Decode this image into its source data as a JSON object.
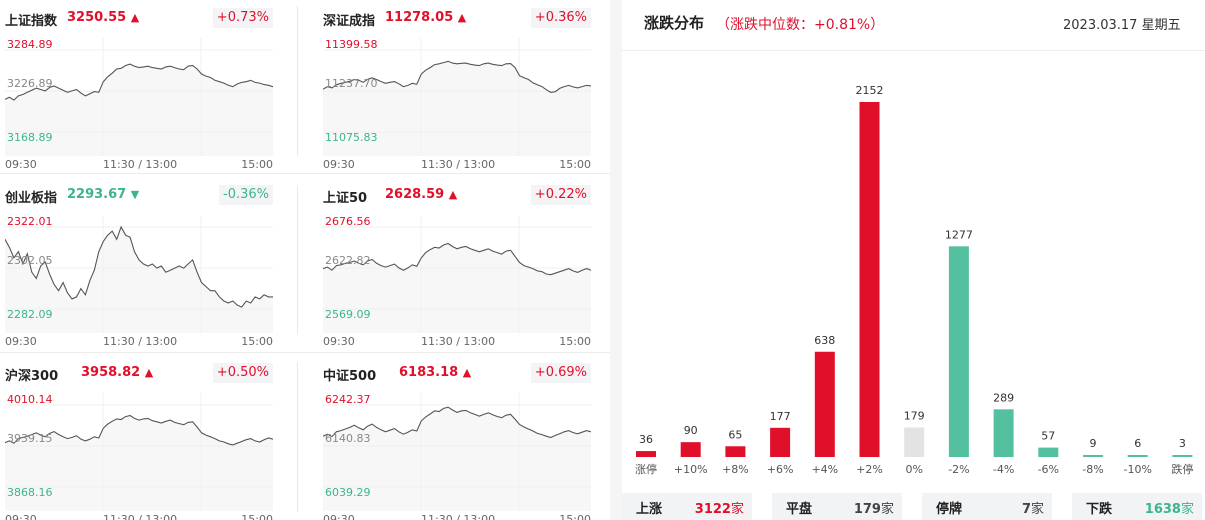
{
  "indices": [
    {
      "name": "上证指数",
      "value": "3250.55",
      "dir": "up",
      "change": "+0.73%",
      "y_top": "3284.89",
      "y_mid": "3226.89",
      "y_bot": "3168.89",
      "series": [
        3215,
        3218,
        3214,
        3220,
        3222,
        3225,
        3228,
        3231,
        3229,
        3227,
        3232,
        3234,
        3231,
        3228,
        3225,
        3227,
        3229,
        3224,
        3220,
        3223,
        3226,
        3225,
        3240,
        3247,
        3252,
        3258,
        3259,
        3263,
        3265,
        3262,
        3260,
        3261,
        3262,
        3260,
        3259,
        3258,
        3261,
        3262,
        3260,
        3258,
        3257,
        3262,
        3263,
        3258,
        3251,
        3248,
        3246,
        3242,
        3240,
        3238,
        3235,
        3233,
        3237,
        3239,
        3240,
        3242,
        3239,
        3238,
        3236,
        3235,
        3233
      ]
    },
    {
      "name": "深证成指",
      "value": "11278.05",
      "dir": "up",
      "change": "+0.36%",
      "y_top": "11399.58",
      "y_mid": "11237.70",
      "y_bot": "11075.83",
      "series": [
        11245,
        11255,
        11250,
        11262,
        11268,
        11272,
        11276,
        11283,
        11280,
        11272,
        11284,
        11290,
        11283,
        11275,
        11268,
        11272,
        11275,
        11266,
        11255,
        11260,
        11268,
        11264,
        11305,
        11320,
        11330,
        11342,
        11345,
        11350,
        11355,
        11348,
        11345,
        11347,
        11348,
        11343,
        11340,
        11338,
        11345,
        11348,
        11343,
        11340,
        11338,
        11345,
        11346,
        11330,
        11298,
        11290,
        11283,
        11270,
        11262,
        11255,
        11243,
        11232,
        11235,
        11248,
        11255,
        11260,
        11254,
        11250,
        11255,
        11260,
        11258
      ]
    },
    {
      "name": "创业板指",
      "value": "2293.67",
      "dir": "down",
      "change": "-0.36%",
      "y_top": "2322.01",
      "y_mid": "2302.05",
      "y_bot": "2282.09",
      "series": [
        2316,
        2312,
        2307,
        2310,
        2304,
        2309,
        2300,
        2297,
        2303,
        2305,
        2299,
        2294,
        2291,
        2295,
        2290,
        2287,
        2288,
        2292,
        2289,
        2296,
        2301,
        2310,
        2315,
        2318,
        2320,
        2316,
        2322,
        2318,
        2317,
        2310,
        2306,
        2304,
        2303,
        2304,
        2302,
        2303,
        2300,
        2301,
        2302,
        2303,
        2302,
        2304,
        2306,
        2300,
        2295,
        2293,
        2291,
        2291,
        2288,
        2286,
        2285,
        2286,
        2284,
        2283,
        2286,
        2285,
        2288,
        2287,
        2289,
        2288,
        2288
      ]
    },
    {
      "name": "上证50",
      "value": "2628.59",
      "dir": "up",
      "change": "+0.22%",
      "y_top": "2676.56",
      "y_mid": "2622.82",
      "y_bot": "2569.09",
      "series": [
        2622,
        2624,
        2620,
        2626,
        2627,
        2629,
        2630,
        2632,
        2629,
        2627,
        2632,
        2634,
        2629,
        2626,
        2624,
        2626,
        2628,
        2623,
        2620,
        2623,
        2627,
        2625,
        2636,
        2643,
        2647,
        2650,
        2649,
        2653,
        2655,
        2651,
        2648,
        2650,
        2651,
        2648,
        2646,
        2644,
        2646,
        2648,
        2645,
        2643,
        2641,
        2645,
        2646,
        2638,
        2630,
        2626,
        2624,
        2622,
        2619,
        2618,
        2615,
        2614,
        2616,
        2618,
        2620,
        2622,
        2619,
        2617,
        2620,
        2622,
        2620
      ]
    },
    {
      "name": "沪深300",
      "value": "3958.82",
      "dir": "up",
      "change": "+0.50%",
      "y_top": "4010.14",
      "y_mid": "3939.15",
      "y_bot": "3868.16",
      "series": [
        3945,
        3948,
        3944,
        3952,
        3954,
        3956,
        3959,
        3962,
        3958,
        3955,
        3961,
        3964,
        3959,
        3955,
        3952,
        3954,
        3957,
        3951,
        3948,
        3951,
        3955,
        3953,
        3970,
        3977,
        3982,
        3986,
        3985,
        3990,
        3992,
        3987,
        3984,
        3986,
        3987,
        3983,
        3981,
        3979,
        3982,
        3984,
        3980,
        3978,
        3976,
        3980,
        3981,
        3972,
        3962,
        3958,
        3955,
        3952,
        3948,
        3946,
        3943,
        3941,
        3944,
        3947,
        3950,
        3952,
        3948,
        3946,
        3950,
        3953,
        3951
      ]
    },
    {
      "name": "中证500",
      "value": "6183.18",
      "dir": "up",
      "change": "+0.69%",
      "y_top": "6242.37",
      "y_mid": "6140.83",
      "y_bot": "6039.29",
      "series": [
        6165,
        6170,
        6164,
        6176,
        6179,
        6183,
        6187,
        6192,
        6186,
        6181,
        6190,
        6195,
        6187,
        6181,
        6176,
        6180,
        6184,
        6176,
        6170,
        6175,
        6181,
        6178,
        6203,
        6213,
        6220,
        6228,
        6226,
        6234,
        6237,
        6230,
        6224,
        6228,
        6229,
        6223,
        6219,
        6215,
        6219,
        6223,
        6218,
        6214,
        6211,
        6217,
        6219,
        6207,
        6194,
        6188,
        6183,
        6178,
        6172,
        6169,
        6165,
        6162,
        6167,
        6171,
        6176,
        6179,
        6174,
        6171,
        6175,
        6179,
        6176
      ]
    }
  ],
  "x_labels": {
    "open": "09:30",
    "mid": "11:30 / 13:00",
    "close": "15:00"
  },
  "distribution": {
    "title": "涨跌分布",
    "subtitle": "（涨跌中位数：+0.81%）",
    "date": "2023.03.17 星期五",
    "chart_data": {
      "type": "bar",
      "categories": [
        "涨停",
        "+10%",
        "+8%",
        "+6%",
        "+4%",
        "+2%",
        "0%",
        "-2%",
        "-4%",
        "-6%",
        "-8%",
        "-10%",
        "跌停"
      ],
      "values": [
        36,
        90,
        65,
        177,
        638,
        2152,
        179,
        1277,
        289,
        57,
        9,
        6,
        3
      ],
      "colors": [
        "#e0102b",
        "#e0102b",
        "#e0102b",
        "#e0102b",
        "#e0102b",
        "#e0102b",
        "#e3e3e3",
        "#55c0a0",
        "#55c0a0",
        "#55c0a0",
        "#55c0a0",
        "#55c0a0",
        "#55c0a0"
      ],
      "ylim": [
        0,
        2152
      ]
    },
    "summary": [
      {
        "label": "上涨",
        "count": "3122",
        "unit": "家",
        "color": "#e0102b"
      },
      {
        "label": "平盘",
        "count": "179",
        "unit": "家",
        "color": "#444444"
      },
      {
        "label": "停牌",
        "count": "7",
        "unit": "家",
        "color": "#444444"
      },
      {
        "label": "下跌",
        "count": "1638",
        "unit": "家",
        "color": "#3bb58c"
      }
    ]
  },
  "colors": {
    "up": "#e0102b",
    "down": "#3bb58c",
    "flat": "#e3e3e3"
  }
}
